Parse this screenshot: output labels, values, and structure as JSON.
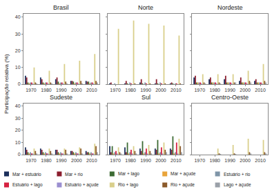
{
  "y_label": "Participação relativa (%)",
  "chart_data": [
    {
      "type": "bar",
      "title": "Brasil",
      "categories": [
        "1970",
        "1980",
        "1990",
        "2000",
        "2010"
      ],
      "ylim": [
        0,
        42
      ],
      "yticks": [
        0,
        10,
        20,
        30,
        40
      ],
      "grid": false,
      "legend": "bottom",
      "series": [
        {
          "name": "Mar + estuário",
          "color": "#1b2f5b",
          "values": [
            5,
            4,
            3,
            2,
            2
          ]
        },
        {
          "name": "Mar + rio",
          "color": "#8b1e2e",
          "values": [
            4,
            3,
            4,
            2,
            1.5
          ]
        },
        {
          "name": "Mar + lago",
          "color": "#3d6b34",
          "values": [
            1,
            1,
            1.5,
            1.5,
            1.5
          ]
        },
        {
          "name": "Mar + açude",
          "color": "#e9a43b",
          "values": [
            0.5,
            0.5,
            0.5,
            0.5,
            0.5
          ]
        },
        {
          "name": "Estuário + rio",
          "color": "#7f95a8",
          "values": [
            1,
            1,
            1,
            1,
            1
          ]
        },
        {
          "name": "Estuário + lago",
          "color": "#d62241",
          "values": [
            1,
            1,
            1,
            1,
            1
          ]
        },
        {
          "name": "Estuário + açude",
          "color": "#9b8fd0",
          "values": [
            0.5,
            0.5,
            0.5,
            0.5,
            0.5
          ]
        },
        {
          "name": "Rio + lago",
          "color": "#d9cf8b",
          "values": [
            10,
            8,
            12,
            14,
            18
          ]
        },
        {
          "name": "Rio + açude",
          "color": "#8b5a2b",
          "values": [
            1,
            1,
            1.5,
            2,
            2
          ]
        },
        {
          "name": "Lago + açude",
          "color": "#9aa0a8",
          "values": [
            0.5,
            0.5,
            0.5,
            0.5,
            1
          ]
        }
      ]
    },
    {
      "type": "bar",
      "title": "Norte",
      "categories": [
        "1970",
        "1980",
        "1990",
        "2000",
        "2010"
      ],
      "ylim": [
        0,
        42
      ],
      "yticks": [
        0,
        10,
        20,
        30,
        40
      ],
      "grid": false,
      "legend": "bottom",
      "tick_labels": "x",
      "series": [
        {
          "name": "Mar + estuário",
          "color": "#1b2f5b",
          "values": [
            0.5,
            0.5,
            1,
            0.5,
            0.5
          ]
        },
        {
          "name": "Mar + rio",
          "color": "#8b1e2e",
          "values": [
            1,
            2,
            3,
            3,
            1
          ]
        },
        {
          "name": "Mar + lago",
          "color": "#3d6b34",
          "values": [
            0,
            0.5,
            0.5,
            0.5,
            0.5
          ]
        },
        {
          "name": "Mar + açude",
          "color": "#e9a43b",
          "values": [
            0,
            0,
            0,
            0,
            0
          ]
        },
        {
          "name": "Estuário + rio",
          "color": "#7f95a8",
          "values": [
            0.5,
            1,
            1,
            1,
            0.5
          ]
        },
        {
          "name": "Estuário + lago",
          "color": "#d62241",
          "values": [
            0,
            0.5,
            0.5,
            0.5,
            0.5
          ]
        },
        {
          "name": "Estuário + açude",
          "color": "#9b8fd0",
          "values": [
            0,
            0,
            0,
            0,
            0
          ]
        },
        {
          "name": "Rio + lago",
          "color": "#d9cf8b",
          "values": [
            33,
            38,
            36,
            35,
            29
          ]
        },
        {
          "name": "Rio + açude",
          "color": "#8b5a2b",
          "values": [
            0,
            0.5,
            0.5,
            0.5,
            0.5
          ]
        },
        {
          "name": "Lago + açude",
          "color": "#9aa0a8",
          "values": [
            0,
            0,
            0,
            0,
            0
          ]
        }
      ]
    },
    {
      "type": "bar",
      "title": "Nordeste",
      "categories": [
        "1970",
        "1980",
        "1990",
        "2000",
        "2010"
      ],
      "ylim": [
        0,
        42
      ],
      "yticks": [
        0,
        10,
        20,
        30,
        40
      ],
      "grid": false,
      "legend": "bottom",
      "tick_labels": "x",
      "series": [
        {
          "name": "Mar + estuário",
          "color": "#1b2f5b",
          "values": [
            4,
            3,
            3,
            2,
            2
          ]
        },
        {
          "name": "Mar + rio",
          "color": "#8b1e2e",
          "values": [
            5,
            4,
            5,
            4,
            3
          ]
        },
        {
          "name": "Mar + lago",
          "color": "#3d6b34",
          "values": [
            1,
            1,
            1,
            1,
            1
          ]
        },
        {
          "name": "Mar + açude",
          "color": "#e9a43b",
          "values": [
            1,
            1,
            1,
            1,
            1
          ]
        },
        {
          "name": "Estuário + rio",
          "color": "#7f95a8",
          "values": [
            1,
            1,
            1,
            1,
            1
          ]
        },
        {
          "name": "Estuário + lago",
          "color": "#d62241",
          "values": [
            1,
            1,
            1,
            1,
            1
          ]
        },
        {
          "name": "Estuário + açude",
          "color": "#9b8fd0",
          "values": [
            0.5,
            0.5,
            0.5,
            0.5,
            0.5
          ]
        },
        {
          "name": "Rio + lago",
          "color": "#d9cf8b",
          "values": [
            6,
            6,
            6,
            8,
            12
          ]
        },
        {
          "name": "Rio + açude",
          "color": "#8b5a2b",
          "values": [
            1,
            1,
            1,
            2,
            2
          ]
        },
        {
          "name": "Lago + açude",
          "color": "#9aa0a8",
          "values": [
            0.5,
            0.5,
            1,
            1,
            1
          ]
        }
      ]
    },
    {
      "type": "bar",
      "title": "Sudeste",
      "categories": [
        "1970",
        "1980",
        "1990",
        "2000",
        "2010"
      ],
      "ylim": [
        0,
        42
      ],
      "yticks": [
        0,
        10,
        20,
        30,
        40
      ],
      "grid": false,
      "legend": "bottom",
      "series": [
        {
          "name": "Mar + estuário",
          "color": "#1b2f5b",
          "values": [
            6,
            5,
            4,
            3,
            3
          ]
        },
        {
          "name": "Mar + rio",
          "color": "#8b1e2e",
          "values": [
            4,
            4,
            4,
            3,
            2
          ]
        },
        {
          "name": "Mar + lago",
          "color": "#3d6b34",
          "values": [
            2,
            2,
            2,
            2,
            2
          ]
        },
        {
          "name": "Mar + açude",
          "color": "#e9a43b",
          "values": [
            1,
            1,
            1,
            1,
            1
          ]
        },
        {
          "name": "Estuário + rio",
          "color": "#7f95a8",
          "values": [
            2,
            2,
            2,
            2,
            2
          ]
        },
        {
          "name": "Estuário + lago",
          "color": "#d62241",
          "values": [
            1,
            1,
            1,
            1,
            1
          ]
        },
        {
          "name": "Estuário + açude",
          "color": "#9b8fd0",
          "values": [
            1,
            1,
            1,
            1,
            1
          ]
        },
        {
          "name": "Rio + lago",
          "color": "#d9cf8b",
          "values": [
            5,
            5,
            5,
            6,
            9
          ]
        },
        {
          "name": "Rio + açude",
          "color": "#8b5a2b",
          "values": [
            3,
            3,
            4,
            5,
            7
          ]
        },
        {
          "name": "Lago + açude",
          "color": "#9aa0a8",
          "values": [
            1,
            1,
            1,
            1,
            2
          ]
        }
      ]
    },
    {
      "type": "bar",
      "title": "Sul",
      "categories": [
        "1970",
        "1980",
        "1990",
        "2000",
        "2010"
      ],
      "ylim": [
        0,
        42
      ],
      "yticks": [
        0,
        10,
        20,
        30,
        40
      ],
      "grid": false,
      "legend": "bottom",
      "tick_labels": "x",
      "series": [
        {
          "name": "Mar + estuário",
          "color": "#1b2f5b",
          "values": [
            7,
            6,
            5,
            5,
            5
          ]
        },
        {
          "name": "Mar + rio",
          "color": "#8b1e2e",
          "values": [
            2,
            2,
            3,
            4,
            4
          ]
        },
        {
          "name": "Mar + lago",
          "color": "#3d6b34",
          "values": [
            7,
            10,
            11,
            12,
            15
          ]
        },
        {
          "name": "Mar + açude",
          "color": "#e9a43b",
          "values": [
            1,
            1,
            1,
            1,
            1
          ]
        },
        {
          "name": "Estuário + rio",
          "color": "#7f95a8",
          "values": [
            2,
            2,
            2,
            2,
            2
          ]
        },
        {
          "name": "Estuário + lago",
          "color": "#d62241",
          "values": [
            3,
            4,
            5,
            6,
            10
          ]
        },
        {
          "name": "Estuário + açude",
          "color": "#9b8fd0",
          "values": [
            1,
            1,
            1,
            1,
            1
          ]
        },
        {
          "name": "Rio + lago",
          "color": "#d9cf8b",
          "values": [
            6,
            7,
            8,
            10,
            13
          ]
        },
        {
          "name": "Rio + açude",
          "color": "#8b5a2b",
          "values": [
            2,
            3,
            3,
            4,
            7
          ]
        },
        {
          "name": "Lago + açude",
          "color": "#9aa0a8",
          "values": [
            1,
            1,
            1,
            2,
            2
          ]
        }
      ]
    },
    {
      "type": "bar",
      "title": "Centro-Oeste",
      "categories": [
        "1970",
        "1980",
        "1990",
        "2000",
        "2010"
      ],
      "ylim": [
        0,
        42
      ],
      "yticks": [
        0,
        10,
        20,
        30,
        40
      ],
      "grid": false,
      "legend": "bottom",
      "tick_labels": "x",
      "series": [
        {
          "name": "Mar + estuário",
          "color": "#1b2f5b",
          "values": [
            0,
            0,
            0,
            0,
            0
          ]
        },
        {
          "name": "Mar + rio",
          "color": "#8b1e2e",
          "values": [
            0,
            0,
            0,
            0,
            0
          ]
        },
        {
          "name": "Mar + lago",
          "color": "#3d6b34",
          "values": [
            0,
            0,
            0,
            0,
            0
          ]
        },
        {
          "name": "Mar + açude",
          "color": "#e9a43b",
          "values": [
            0,
            0,
            0,
            0,
            0
          ]
        },
        {
          "name": "Estuário + rio",
          "color": "#7f95a8",
          "values": [
            0,
            0,
            0,
            0,
            0
          ]
        },
        {
          "name": "Estuário + lago",
          "color": "#d62241",
          "values": [
            0,
            0,
            0,
            0,
            0
          ]
        },
        {
          "name": "Estuário + açude",
          "color": "#9b8fd0",
          "values": [
            0,
            0,
            0,
            0,
            0
          ]
        },
        {
          "name": "Rio + lago",
          "color": "#d9cf8b",
          "values": [
            0,
            5,
            8,
            13,
            12
          ]
        },
        {
          "name": "Rio + açude",
          "color": "#8b5a2b",
          "values": [
            0,
            1,
            1,
            2,
            2
          ]
        },
        {
          "name": "Lago + açude",
          "color": "#9aa0a8",
          "values": [
            0,
            0.5,
            0.5,
            1,
            1
          ]
        }
      ]
    }
  ]
}
